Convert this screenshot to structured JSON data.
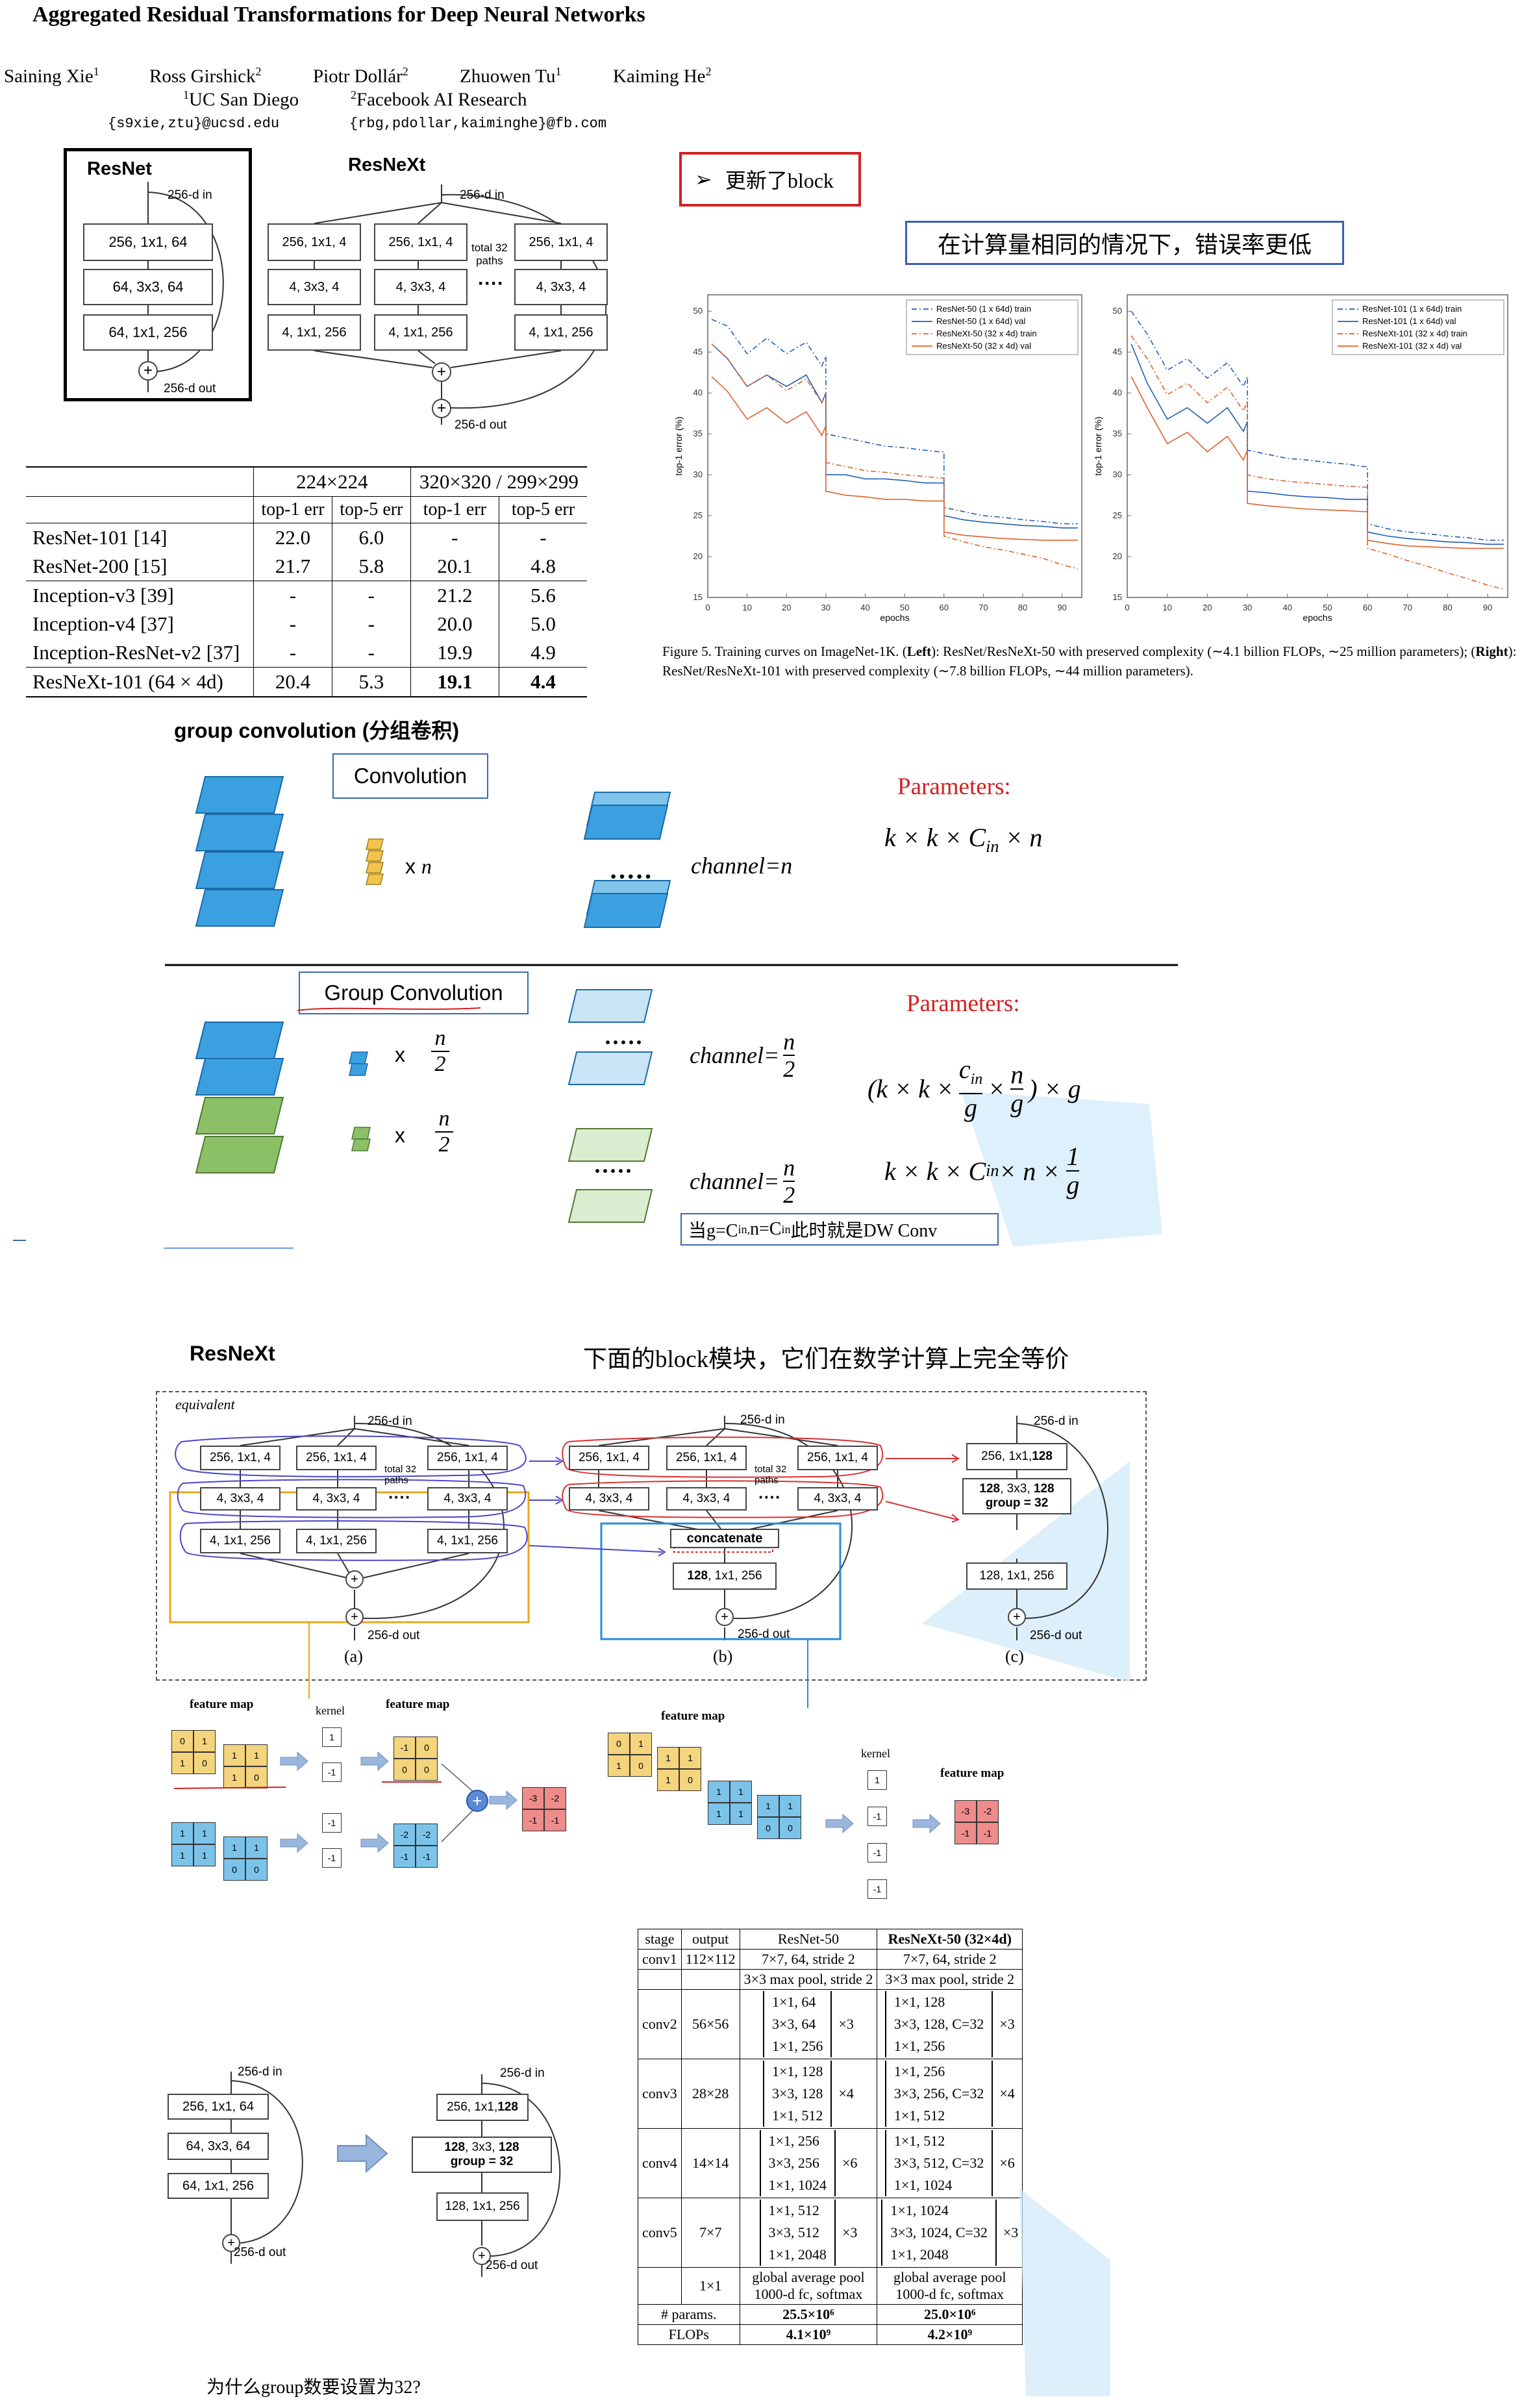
{
  "paper": {
    "title": "Aggregated Residual Transformations for Deep Neural Networks",
    "authors": [
      "Saining Xie",
      "Ross Girshick",
      "Piotr Dollár",
      "Zhuowen Tu",
      "Kaiming He"
    ],
    "author_sups": [
      "1",
      "2",
      "2",
      "1",
      "2"
    ],
    "aff1": "UC San Diego",
    "aff2": "Facebook AI Research",
    "email1": "{s9xie,ztu}@ucsd.edu",
    "email2": "{rbg,pdollar,kaiminghe}@fb.com"
  },
  "fig1": {
    "resnet_title": "ResNet",
    "resnext_title": "ResNeXt",
    "in": "256-d in",
    "out": "256-d out",
    "r1": "256, 1x1, 64",
    "r2": "64, 3x3, 64",
    "r3": "64, 1x1, 256",
    "x1": "256, 1x1, 4",
    "x2": "4, 3x3, 4",
    "x3": "4, 1x1, 256",
    "paths": "total 32\npaths",
    "dots": "····",
    "plus": "+"
  },
  "results_table": {
    "h1": "224×224",
    "h2": "320×320 / 299×299",
    "sub": [
      "top-1 err",
      "top-5 err",
      "top-1 err",
      "top-5 err"
    ],
    "rows": [
      [
        "ResNet-101 [14]",
        "22.0",
        "6.0",
        "-",
        "-"
      ],
      [
        "ResNet-200 [15]",
        "21.7",
        "5.8",
        "20.1",
        "4.8"
      ],
      [
        "Inception-v3 [39]",
        "-",
        "-",
        "21.2",
        "5.6"
      ],
      [
        "Inception-v4 [37]",
        "-",
        "-",
        "20.0",
        "5.0"
      ],
      [
        "Inception-ResNet-v2 [37]",
        "-",
        "-",
        "19.9",
        "4.9"
      ],
      [
        "ResNeXt-101 (64 × 4d)",
        "20.4",
        "5.3",
        "19.1",
        "4.4"
      ]
    ]
  },
  "notes": {
    "block_updated": "更新了block",
    "same_compute": "在计算量相同的情况下，错误率更低",
    "group_conv_title": "group convolution (分组卷积)",
    "conv_label": "Convolution",
    "group_conv_label": "Group Convolution",
    "xn": "x n",
    "x": "x",
    "n": "n",
    "two": "2",
    "channel_n": "channel=n",
    "channel_eq": "channel=",
    "dots": "·····",
    "params": "Parameters:",
    "formula1": "k × k × C",
    "formula1_sub": "in",
    "formula1_tail": " × n",
    "formula2a": "(k × k ×",
    "formula2_cin": "c",
    "formula2_cin_sub": "in",
    "formula2_g": "g",
    "formula2_mid": "×",
    "formula2_tail": ") × g",
    "formula3": "k × k × C",
    "formula3_sub": "in",
    "formula3_tail": " × n ×",
    "formula3_num": "1",
    "formula3_den": "g",
    "dw_note": "当g=C",
    "dw_note_sub": "in,",
    "dw_note_mid": "  n=C",
    "dw_note_sub2": "in",
    "dw_note_tail": "此时就是DW Conv",
    "resnext_label": "ResNeXt",
    "equiv_note": "下面的block模块，它们在数学计算上完全等价",
    "why32": "为什么group数要设置为32?"
  },
  "chart_caption": {
    "label": "Figure 5. Training curves on ImageNet-1K. (",
    "left_b": "Left",
    "c2": "): ResNet/ResNeXt-50 with preserved complexity (∼4.1 billion FLOPs, ∼25 million parameters); (",
    "right_b": "Right",
    "c3": "): ResNet/ResNeXt-101 with preserved complexity (∼7.8 billion FLOPs, ∼44 million parameters)."
  },
  "chart_data": [
    {
      "type": "line",
      "xlabel": "epochs",
      "ylabel": "top-1 error (%)",
      "xlim": [
        0,
        95
      ],
      "ylim": [
        15,
        52
      ],
      "xticks": [
        0,
        10,
        20,
        30,
        40,
        50,
        60,
        70,
        80,
        90
      ],
      "yticks": [
        15,
        20,
        25,
        30,
        35,
        40,
        45,
        50
      ],
      "legend_position": "top-right",
      "series": [
        {
          "name": "ResNet-50 (1 x 64d) train",
          "color": "#1f5fb5",
          "dash": "8,4,2,4",
          "x": [
            1,
            5,
            10,
            15,
            20,
            25,
            29,
            30,
            35,
            40,
            45,
            50,
            55,
            59,
            60,
            65,
            70,
            75,
            80,
            85,
            90,
            94
          ],
          "y": [
            49,
            47,
            46,
            45.5,
            46,
            45,
            44.5,
            35,
            34.5,
            34,
            33.5,
            33.3,
            33,
            32.8,
            26,
            25.5,
            25,
            24.8,
            24.5,
            24.3,
            24,
            24
          ]
        },
        {
          "name": "ResNet-50 (1 x 64d) val",
          "color": "#1f5fb5",
          "dash": "",
          "x": [
            1,
            5,
            10,
            15,
            20,
            25,
            29,
            30,
            35,
            40,
            45,
            50,
            55,
            59,
            60,
            65,
            70,
            75,
            80,
            85,
            90,
            94
          ],
          "y": [
            46,
            43,
            42,
            41,
            42,
            41,
            40,
            30,
            30,
            29.5,
            29.5,
            29.3,
            29,
            29,
            25,
            24.5,
            24.2,
            24,
            23.8,
            23.7,
            23.5,
            23.5
          ]
        },
        {
          "name": "ResNeXt-50 (32 x 4d) train",
          "color": "#e0602a",
          "dash": "8,4,2,4",
          "x": [
            1,
            5,
            10,
            15,
            20,
            25,
            29,
            30,
            35,
            40,
            45,
            50,
            55,
            59,
            60,
            65,
            70,
            75,
            80,
            85,
            90,
            94
          ],
          "y": [
            46,
            43,
            42,
            41,
            41.5,
            40.5,
            40,
            31.5,
            31,
            30.5,
            30.3,
            30,
            29.8,
            29.6,
            22.5,
            21.8,
            21.2,
            20.8,
            20.3,
            19.8,
            19,
            18.5
          ]
        },
        {
          "name": "ResNeXt-50 (32 x 4d) val",
          "color": "#e0602a",
          "dash": "",
          "x": [
            1,
            5,
            10,
            15,
            20,
            25,
            29,
            30,
            35,
            40,
            45,
            50,
            55,
            59,
            60,
            65,
            70,
            75,
            80,
            85,
            90,
            94
          ],
          "y": [
            42,
            39,
            38,
            37,
            37.5,
            36.5,
            36,
            28,
            27.5,
            27.3,
            27,
            27,
            26.8,
            26.8,
            23,
            22.6,
            22.4,
            22.2,
            22.1,
            22,
            22,
            22
          ]
        }
      ]
    },
    {
      "type": "line",
      "xlabel": "epochs",
      "ylabel": "top-1 error (%)",
      "xlim": [
        0,
        95
      ],
      "ylim": [
        15,
        52
      ],
      "xticks": [
        0,
        10,
        20,
        30,
        40,
        50,
        60,
        70,
        80,
        90
      ],
      "yticks": [
        15,
        20,
        25,
        30,
        35,
        40,
        45,
        50
      ],
      "legend_position": "top-right",
      "series": [
        {
          "name": "ResNet-101 (1 x 64d) train",
          "color": "#1f5fb5",
          "dash": "8,4,2,4",
          "x": [
            1,
            5,
            10,
            15,
            20,
            25,
            29,
            30,
            35,
            40,
            45,
            50,
            55,
            59,
            60,
            65,
            70,
            75,
            80,
            85,
            90,
            94
          ],
          "y": [
            50,
            46,
            44,
            43,
            43,
            42.5,
            42,
            33,
            32.5,
            32,
            31.8,
            31.5,
            31.3,
            31,
            24,
            23.4,
            23,
            22.8,
            22.5,
            22.3,
            22,
            22
          ]
        },
        {
          "name": "ResNet-101 (1 x 64d) val",
          "color": "#1f5fb5",
          "dash": "",
          "x": [
            1,
            5,
            10,
            15,
            20,
            25,
            29,
            30,
            35,
            40,
            45,
            50,
            55,
            59,
            60,
            65,
            70,
            75,
            80,
            85,
            90,
            94
          ],
          "y": [
            46,
            40,
            38,
            37,
            37.5,
            37,
            36.5,
            28,
            27.8,
            27.5,
            27.3,
            27.2,
            27,
            27,
            23,
            22.5,
            22.2,
            22,
            21.8,
            21.7,
            21.5,
            21.5
          ]
        },
        {
          "name": "ResNeXt-101 (32 x 4d) train",
          "color": "#e0602a",
          "dash": "8,4,2,4",
          "x": [
            1,
            5,
            10,
            15,
            20,
            25,
            29,
            30,
            35,
            40,
            45,
            50,
            55,
            59,
            60,
            65,
            70,
            75,
            80,
            85,
            90,
            94
          ],
          "y": [
            47,
            43,
            41,
            40,
            40,
            39.5,
            39,
            30,
            29.5,
            29.2,
            29,
            28.8,
            28.6,
            28.5,
            21,
            20.3,
            19.5,
            18.8,
            18,
            17.3,
            16.5,
            16
          ]
        },
        {
          "name": "ResNeXt-101 (32 x 4d) val",
          "color": "#e0602a",
          "dash": "",
          "x": [
            1,
            5,
            10,
            15,
            20,
            25,
            29,
            30,
            35,
            40,
            45,
            50,
            55,
            59,
            60,
            65,
            70,
            75,
            80,
            85,
            90,
            94
          ],
          "y": [
            42,
            37,
            35,
            34,
            34,
            33.5,
            33,
            26.5,
            26.2,
            26,
            25.8,
            25.7,
            25.6,
            25.5,
            22,
            21.6,
            21.3,
            21.2,
            21.1,
            21,
            21,
            21
          ]
        }
      ]
    }
  ],
  "fig_equiv": {
    "equivalent": "equivalent",
    "in": "256-d in",
    "out": "256-d out",
    "a1": "256, 1x1, 4",
    "a2": "4, 3x3, 4",
    "a3": "4, 1x1, 256",
    "paths": "total 32\npaths",
    "concat": "concatenate",
    "b3_bold": "128",
    "b3": ", 1x1, 256",
    "c1": "256, 1x1, ",
    "c1_bold": "128",
    "c2_bold": "128",
    "c2": ", 3x3, ",
    "c2_bold2": "128",
    "c2_group": "group = 32",
    "c3": "128, 1x1, 256",
    "cap_a": "(a)",
    "cap_b": "(b)",
    "cap_c": "(c)",
    "plus": "+"
  },
  "feature_demo": {
    "feature_map": "feature map",
    "kernel": "kernel",
    "y_in": [
      "0",
      "1",
      "1",
      "0"
    ],
    "y_in2": [
      "1",
      "1",
      "1",
      "0"
    ],
    "b_in": [
      "1",
      "1",
      "1",
      "1"
    ],
    "b_in2": [
      "1",
      "1",
      "0",
      "0"
    ],
    "k1": [
      "1",
      "-1"
    ],
    "k2": [
      "-1",
      "-1"
    ],
    "y_out": [
      "-1",
      "0",
      "0",
      "0"
    ],
    "b_out": [
      "-2",
      "-2",
      "-1",
      "-1"
    ],
    "r_out": [
      "-3",
      "-2",
      "-1",
      "-1"
    ],
    "k_stack": [
      "1",
      "-1",
      "-1",
      "-1"
    ],
    "plus": "+"
  },
  "arch_table": {
    "head": [
      "stage",
      "output",
      "ResNet-50",
      "ResNeXt-50 (32×4d)"
    ],
    "conv1": [
      "conv1",
      "112×112",
      "7×7, 64, stride 2",
      "7×7, 64, stride 2"
    ],
    "pool": [
      "3×3 max pool, stride 2",
      "3×3 max pool, stride 2"
    ],
    "stages": [
      {
        "stage": "conv2",
        "out": "56×56",
        "r": [
          "1×1, 64",
          "3×3, 64",
          "1×1, 256"
        ],
        "rx": "×3",
        "x": [
          "1×1, 128",
          "3×3, 128, C=32",
          "1×1, 256"
        ],
        "xx": "×3"
      },
      {
        "stage": "conv3",
        "out": "28×28",
        "r": [
          "1×1, 128",
          "3×3, 128",
          "1×1, 512"
        ],
        "rx": "×4",
        "x": [
          "1×1, 256",
          "3×3, 256, C=32",
          "1×1, 512"
        ],
        "xx": "×4"
      },
      {
        "stage": "conv4",
        "out": "14×14",
        "r": [
          "1×1, 256",
          "3×3, 256",
          "1×1, 1024"
        ],
        "rx": "×6",
        "x": [
          "1×1, 512",
          "3×3, 512, C=32",
          "1×1, 1024"
        ],
        "xx": "×6"
      },
      {
        "stage": "conv5",
        "out": "7×7",
        "r": [
          "1×1, 512",
          "3×3, 512",
          "1×1, 2048"
        ],
        "rx": "×3",
        "x": [
          "1×1, 1024",
          "3×3, 1024, C=32",
          "1×1, 2048"
        ],
        "xx": "×3"
      }
    ],
    "final": [
      "1×1",
      "global average pool",
      "1000-d fc, softmax",
      "global average pool",
      "1000-d fc, softmax"
    ],
    "params": [
      "# params.",
      "25.5×10⁶",
      "25.0×10⁶"
    ],
    "flops": [
      "FLOPs",
      "4.1×10⁹",
      "4.2×10⁹"
    ]
  },
  "fig_bottom": {
    "in": "256-d in",
    "out": "256-d out",
    "l1": "256, 1x1, 64",
    "l2": "64, 3x3, 64",
    "l3": "64, 1x1, 256",
    "r1": "256, 1x1, ",
    "r1b": "128",
    "r2a": "128",
    "r2b": ", 3x3, ",
    "r2c": "128",
    "r2g": "group = 32",
    "r3": "128, 1x1, 256",
    "plus": "+"
  }
}
